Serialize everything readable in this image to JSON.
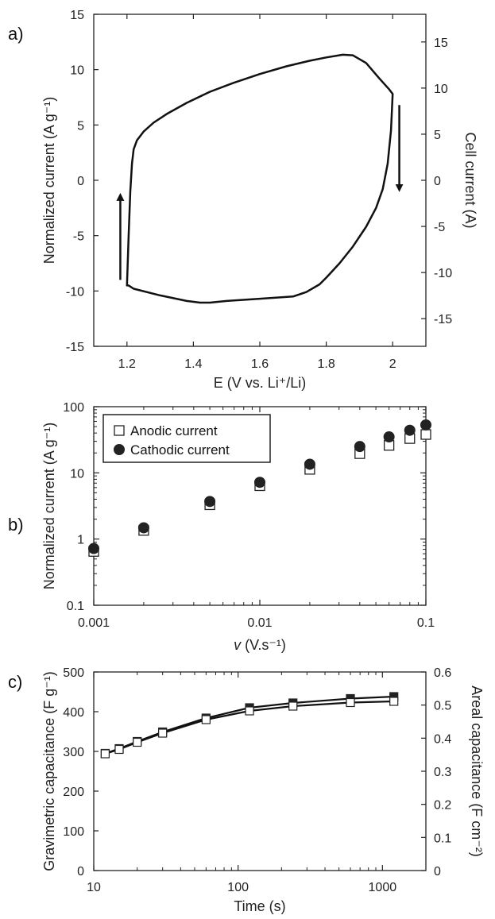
{
  "panels": [
    {
      "label": "a)",
      "chart_data": {
        "type": "line",
        "xlabel": "E (V vs. Li⁺/Li)",
        "ylabel": "Normalized current (A g⁻¹)",
        "y2label": "Cell current (A)",
        "xlim": [
          1.1,
          2.1
        ],
        "ylim": [
          -15,
          15
        ],
        "y2lim": [
          -18,
          18
        ],
        "xticks": [
          1.2,
          1.4,
          1.6,
          1.8,
          2
        ],
        "xtick_labels": [
          "1.2",
          "1.4",
          "1.6",
          "1.8",
          "2"
        ],
        "yticks": [
          -15,
          -10,
          -5,
          0,
          5,
          10,
          15
        ],
        "ytick_labels": [
          "-15",
          "-10",
          "-5",
          "0",
          "5",
          "10",
          "15"
        ],
        "y2ticks": [
          -15,
          -10,
          -5,
          0,
          5,
          10,
          15
        ],
        "y2tick_labels": [
          "-15",
          "-10",
          "-5",
          "0",
          "5",
          "10",
          "15"
        ],
        "series": [
          {
            "x": [
              1.2,
              1.205,
              1.21,
              1.215,
              1.22,
              1.23,
              1.25,
              1.28,
              1.32,
              1.38,
              1.45,
              1.52,
              1.6,
              1.68,
              1.75,
              1.8,
              1.85,
              1.88,
              1.92,
              1.96,
              1.99,
              2.0,
              1.995,
              1.985,
              1.97,
              1.95,
              1.92,
              1.88,
              1.84,
              1.8,
              1.78,
              1.74,
              1.7,
              1.6,
              1.5,
              1.45,
              1.42,
              1.38,
              1.3,
              1.22,
              1.205
            ],
            "y": [
              -9.5,
              -5,
              -1,
              1.5,
              2.8,
              3.6,
              4.4,
              5.2,
              6,
              7,
              8,
              8.8,
              9.6,
              10.3,
              10.8,
              11.1,
              11.35,
              11.3,
              10.6,
              9.2,
              8.2,
              7.8,
              4.5,
              1.5,
              -0.8,
              -2.5,
              -4.2,
              -6,
              -7.5,
              -8.8,
              -9.4,
              -10.1,
              -10.5,
              -10.7,
              -10.9,
              -11.05,
              -11.05,
              -10.9,
              -10.4,
              -9.8,
              -9.5
            ]
          }
        ],
        "arrows": [
          {
            "x": 1.18,
            "y_from": -9,
            "y_to": -1.5
          },
          {
            "x": 2.02,
            "y_from": 6.8,
            "y_to": -0.7
          }
        ]
      }
    },
    {
      "label": "b)",
      "chart_data": {
        "type": "scatter",
        "xlabel_italic": "v",
        "xlabel_rest": " (V.s⁻¹)",
        "ylabel": "Normalized current (A g⁻¹)",
        "x_scale": "log",
        "y_scale": "log",
        "xlim": [
          0.001,
          0.1
        ],
        "ylim": [
          0.1,
          100
        ],
        "xticks": [
          0.001,
          0.01,
          0.1
        ],
        "xtick_labels": [
          "0.001",
          "0.01",
          "0.1"
        ],
        "yticks": [
          0.1,
          1,
          10,
          100
        ],
        "ytick_labels": [
          "0.1",
          "1",
          "10",
          "100"
        ],
        "legend_position": "top-left",
        "series": [
          {
            "name": "Anodic current",
            "marker": "open-square",
            "x": [
              0.001,
              0.002,
              0.005,
              0.01,
              0.02,
              0.04,
              0.06,
              0.08,
              0.1
            ],
            "y": [
              0.65,
              1.35,
              3.3,
              6.4,
              11.3,
              19.5,
              26,
              33,
              38
            ]
          },
          {
            "name": "Cathodic current",
            "marker": "filled-circle",
            "x": [
              0.001,
              0.002,
              0.005,
              0.01,
              0.02,
              0.04,
              0.06,
              0.08,
              0.1
            ],
            "y": [
              0.72,
              1.48,
              3.7,
              7.2,
              13.5,
              25,
              35,
              44,
              53
            ]
          }
        ]
      }
    },
    {
      "label": "c)",
      "chart_data": {
        "type": "line",
        "xlabel": "Time (s)",
        "ylabel": "Gravimetric capacitance (F g⁻¹)",
        "y2label": "Areal capacitance (F cm⁻²)",
        "x_scale": "log",
        "xlim": [
          10,
          2000
        ],
        "ylim": [
          0,
          500
        ],
        "y2lim": [
          0,
          0.6
        ],
        "xticks": [
          10,
          100,
          1000
        ],
        "xtick_labels": [
          "10",
          "100",
          "1000"
        ],
        "yticks": [
          0,
          100,
          200,
          300,
          400,
          500
        ],
        "ytick_labels": [
          "0",
          "100",
          "200",
          "300",
          "400",
          "500"
        ],
        "y2ticks": [
          0,
          0.1,
          0.2,
          0.3,
          0.4,
          0.5,
          0.6
        ],
        "y2tick_labels": [
          "0",
          "0.1",
          "0.2",
          "0.3",
          "0.4",
          "0.5",
          "0.6"
        ],
        "series": [
          {
            "marker": "filled-square",
            "x": [
              12,
              15,
              20,
              30,
              60,
              120,
              240,
              600,
              1200
            ],
            "y": [
              295,
              307,
              325,
              349,
              384,
              410,
              422,
              433,
              438
            ]
          },
          {
            "marker": "open-square",
            "x": [
              12,
              15,
              20,
              30,
              60,
              120,
              240,
              600,
              1200
            ],
            "y": [
              294,
              305,
              323,
              346,
              380,
              402,
              414,
              423,
              426
            ]
          }
        ]
      }
    }
  ]
}
